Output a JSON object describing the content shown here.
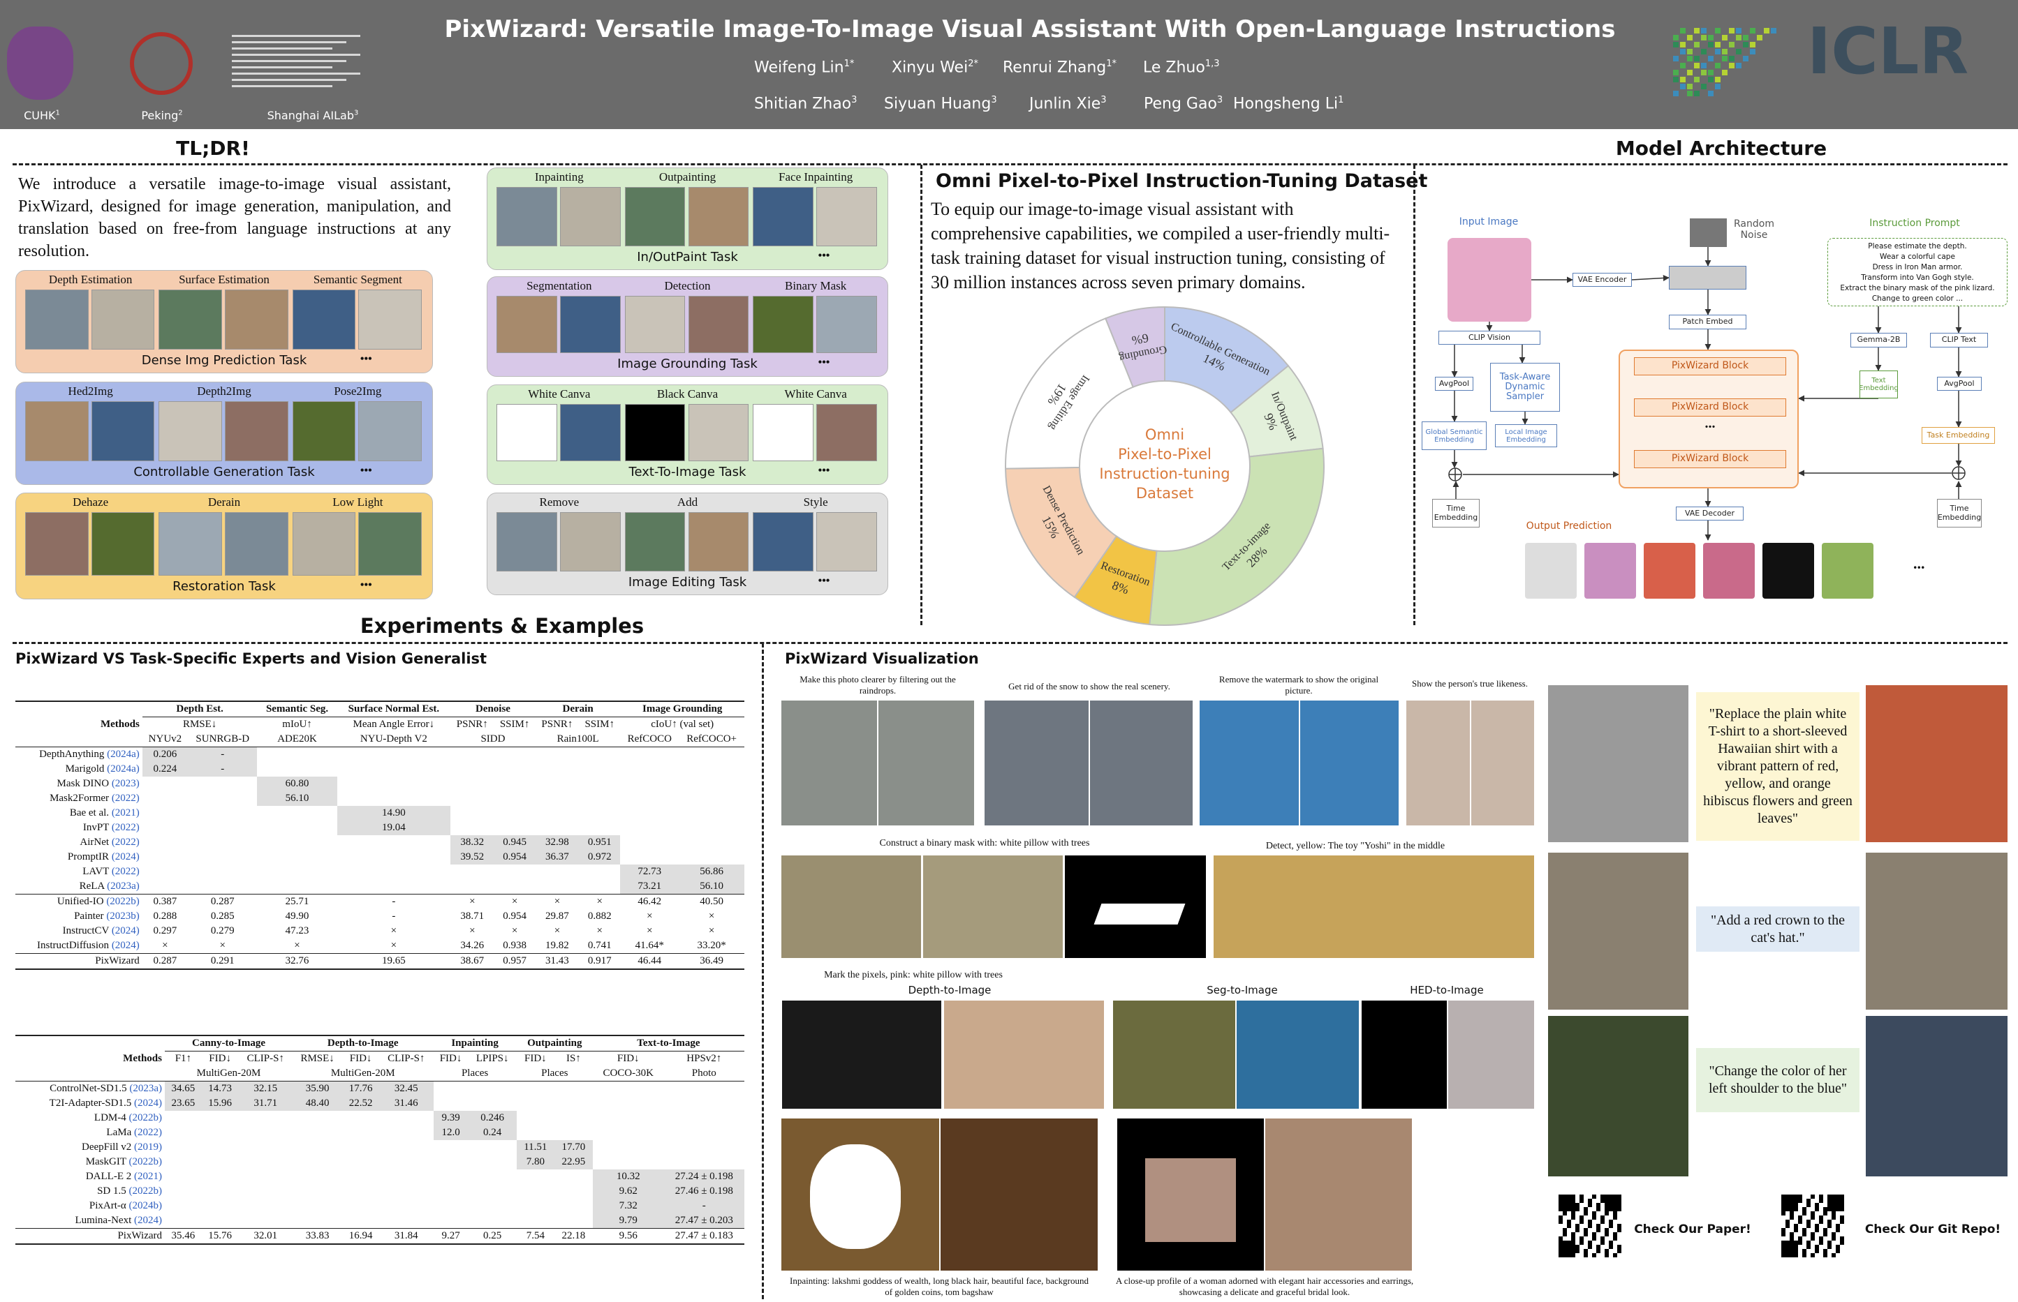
{
  "header": {
    "title": "PixWizard: Versatile Image-To-Image Visual Assistant With Open-Language Instructions",
    "authors": [
      {
        "name": "Weifeng Lin",
        "sup": "1*"
      },
      {
        "name": "Xinyu Wei",
        "sup": "2*"
      },
      {
        "name": "Renrui Zhang",
        "sup": "1*"
      },
      {
        "name": "Le Zhuo",
        "sup": "1,3"
      },
      {
        "name": "Shitian Zhao",
        "sup": "3"
      },
      {
        "name": "Siyuan Huang",
        "sup": "3"
      },
      {
        "name": "Junlin Xie",
        "sup": "3"
      },
      {
        "name": "Peng Gao",
        "sup": "3"
      },
      {
        "name": "Hongsheng Li",
        "sup": "1"
      }
    ],
    "affiliations": [
      {
        "name": "CUHK",
        "sup": "1"
      },
      {
        "name": "Peking",
        "sup": "2"
      },
      {
        "name": "Shanghai AILab",
        "sup": "3"
      }
    ],
    "conference": "ICLR"
  },
  "tldr": {
    "title": "TL;DR!",
    "text": "We introduce a versatile image-to-image visual assistant, PixWizard, designed for image generation, manipulation, and translation based on free-from language instructions at any resolution.",
    "more": "•••",
    "tasks": [
      {
        "title": "Dense Img Prediction Task",
        "items": [
          "Depth Estimation",
          "Surface  Estimation",
          "Semantic Segment"
        ]
      },
      {
        "title": "Controllable Generation Task",
        "items": [
          "Hed2Img",
          "Depth2Img",
          "Pose2Img"
        ]
      },
      {
        "title": "Restoration Task",
        "items": [
          "Dehaze",
          "Derain",
          "Low Light"
        ]
      },
      {
        "title": "In/OutPaint Task",
        "items": [
          "Inpainting",
          "Outpainting",
          "Face Inpainting"
        ]
      },
      {
        "title": "Image Grounding Task",
        "items": [
          "Segmentation",
          "Detection",
          "Binary Mask"
        ]
      },
      {
        "title": "Text-To-Image Task",
        "items": [
          "White Canva",
          "Black Canva",
          "White Canva"
        ]
      },
      {
        "title": "Image Editing Task",
        "items": [
          "Remove",
          "Add",
          "Style"
        ]
      }
    ]
  },
  "dataset": {
    "title": "Omni Pixel-to-Pixel Instruction-Tuning Dataset",
    "text": "To equip our image-to-image visual assistant with comprehensive capabilities, we compiled a user-friendly multi-task training dataset for visual instruction tuning, consisting of 30 million instances across seven primary domains.",
    "center_label": [
      "Omni",
      "Pixel-to-Pixel",
      "Instruction-tuning",
      "Dataset"
    ],
    "segments": [
      {
        "name": "Controllable Generation",
        "value": 14,
        "label": "14%",
        "color": "#bccbee"
      },
      {
        "name": "In/Outpaint",
        "value": 9,
        "label": "9%",
        "color": "#e3f0db"
      },
      {
        "name": "Text-to-image",
        "value": 28,
        "label": "28%",
        "color": "#cbe2b4"
      },
      {
        "name": "Restoration",
        "value": 8,
        "label": "8%",
        "color": "#f2c445"
      },
      {
        "name": "Dense Prediction",
        "value": 15,
        "label": "15%",
        "color": "#f6d0b4"
      },
      {
        "name": "Image Editing",
        "value": 19,
        "label": "19%",
        "color": "#ffffff"
      },
      {
        "name": "Grounding",
        "value": 6,
        "label": "6%",
        "color": "#d6c8e6"
      }
    ]
  },
  "architecture": {
    "title": "Model Architecture",
    "input_image": "Input Image",
    "random_noise": "Random Noise",
    "vae_encoder": "VAE Encoder",
    "clip_vision": "CLIP Vision",
    "patch_embed": "Patch Embed",
    "avgpool": "AvgPool",
    "sampler": "Task-Aware Dynamic Sampler",
    "global_embedding": "Global Semantic Embedding",
    "local_embedding": "Local Image Embedding",
    "time_embedding": "Time Embedding",
    "block": "PixWizard Block",
    "ellipsis": "...",
    "vae_decoder": "VAE Decoder",
    "output_prediction": "Output Prediction",
    "instruction_prompt": "Instruction Prompt",
    "prompts": [
      "Please estimate the depth.",
      "Wear a colorful cape",
      "Dress in Iron Man armor.",
      "Transform into Van Gogh style.",
      "Extract the binary mask of the pink lizard.",
      "Change to green color ..."
    ],
    "gemma": "Gemma-2B",
    "clip_text": "CLIP Text",
    "text_embedding": "Text Embedding",
    "task_embedding": "Task Embedding"
  },
  "experiments": {
    "title": "Experiments & Examples",
    "subtitle": "PixWizard VS Task-Specific Experts and Vision Generalist",
    "table1": {
      "methods_header": "Methods",
      "groups": [
        {
          "name": "Depth Est.",
          "span": 2,
          "metrics": [
            "RMSE↓"
          ],
          "datasets": [
            "NYUv2",
            "SUNRGB-D"
          ]
        },
        {
          "name": "Semantic Seg.",
          "span": 1,
          "metrics": [
            "mIoU↑"
          ],
          "datasets": [
            "ADE20K"
          ]
        },
        {
          "name": "Surface Normal Est.",
          "span": 1,
          "metrics": [
            "Mean Angle Error↓"
          ],
          "datasets": [
            "NYU-Depth V2"
          ]
        },
        {
          "name": "Denoise",
          "span": 2,
          "metrics": [
            "PSNR↑",
            "SSIM↑"
          ],
          "datasets": [
            "SIDD"
          ]
        },
        {
          "name": "Derain",
          "span": 2,
          "metrics": [
            "PSNR↑",
            "SSIM↑"
          ],
          "datasets": [
            "Rain100L"
          ]
        },
        {
          "name": "Image Grounding",
          "span": 2,
          "metrics": [
            "cIoU↑ (val set)"
          ],
          "datasets": [
            "RefCOCO",
            "RefCOCO+"
          ]
        }
      ],
      "rows": [
        {
          "method": "DepthAnything",
          "cite": "(2024a)",
          "cells": [
            "0.206",
            "-",
            null,
            null,
            null,
            null,
            null,
            null,
            null,
            null
          ]
        },
        {
          "method": "Marigold",
          "cite": "(2024a)",
          "cells": [
            "0.224",
            "-",
            null,
            null,
            null,
            null,
            null,
            null,
            null,
            null
          ]
        },
        {
          "method": "Mask DINO",
          "cite": "(2023)",
          "cells": [
            null,
            null,
            "60.80",
            null,
            null,
            null,
            null,
            null,
            null,
            null
          ]
        },
        {
          "method": "Mask2Former",
          "cite": "(2022)",
          "cells": [
            null,
            null,
            "56.10",
            null,
            null,
            null,
            null,
            null,
            null,
            null
          ]
        },
        {
          "method": "Bae et al.",
          "cite": "(2021)",
          "cells": [
            null,
            null,
            null,
            "14.90",
            null,
            null,
            null,
            null,
            null,
            null
          ]
        },
        {
          "method": "InvPT",
          "cite": "(2022)",
          "cells": [
            null,
            null,
            null,
            "19.04",
            null,
            null,
            null,
            null,
            null,
            null
          ]
        },
        {
          "method": "AirNet",
          "cite": "(2022)",
          "cells": [
            null,
            null,
            null,
            null,
            "38.32",
            "0.945",
            "32.98",
            "0.951",
            null,
            null
          ]
        },
        {
          "method": "PromptIR",
          "cite": "(2024)",
          "cells": [
            null,
            null,
            null,
            null,
            "39.52",
            "0.954",
            "36.37",
            "0.972",
            null,
            null
          ]
        },
        {
          "method": "LAVT",
          "cite": "(2022)",
          "cells": [
            null,
            null,
            null,
            null,
            null,
            null,
            null,
            null,
            "72.73",
            "56.86"
          ]
        },
        {
          "method": "ReLA",
          "cite": "(2023a)",
          "cells": [
            null,
            null,
            null,
            null,
            null,
            null,
            null,
            null,
            "73.21",
            "56.10"
          ]
        },
        {
          "method": "Unified-IO",
          "cite": "(2022b)",
          "cells": [
            "0.387",
            "0.287",
            "25.71",
            "-",
            "×",
            "×",
            "×",
            "×",
            "46.42",
            "40.50"
          ]
        },
        {
          "method": "Painter",
          "cite": "(2023b)",
          "cells": [
            "0.288",
            "0.285",
            "49.90",
            "-",
            "38.71",
            "0.954",
            "29.87",
            "0.882",
            "×",
            "×"
          ]
        },
        {
          "method": "InstructCV",
          "cite": "(2024)",
          "cells": [
            "0.297",
            "0.279",
            "47.23",
            "×",
            "×",
            "×",
            "×",
            "×",
            "×",
            "×"
          ]
        },
        {
          "method": "InstructDiffusion",
          "cite": "(2024)",
          "cells": [
            "×",
            "×",
            "×",
            "×",
            "34.26",
            "0.938",
            "19.82",
            "0.741",
            "41.64*",
            "33.20*"
          ]
        },
        {
          "method": "PixWizard",
          "cells": [
            "0.287",
            "0.291",
            "32.76",
            "19.65",
            "38.67",
            "0.957",
            "31.43",
            "0.917",
            "46.44",
            "36.49"
          ]
        }
      ]
    },
    "table2": {
      "methods_header": "Methods",
      "groups": [
        {
          "name": "Canny-to-Image",
          "span": 3,
          "metrics": [
            "F1↑",
            "FID↓",
            "CLIP-S↑"
          ],
          "datasets": [
            "MultiGen-20M"
          ]
        },
        {
          "name": "Depth-to-Image",
          "span": 3,
          "metrics": [
            "RMSE↓",
            "FID↓",
            "CLIP-S↑"
          ],
          "datasets": [
            "MultiGen-20M"
          ]
        },
        {
          "name": "Inpainting",
          "span": 2,
          "metrics": [
            "FID↓",
            "LPIPS↓"
          ],
          "datasets": [
            "Places"
          ]
        },
        {
          "name": "Outpainting",
          "span": 2,
          "metrics": [
            "FID↓",
            "IS↑"
          ],
          "datasets": [
            "Places"
          ]
        },
        {
          "name": "Text-to-Image",
          "span": 2,
          "metrics": [
            "FID↓",
            "HPSv2↑"
          ],
          "datasets": [
            "COCO-30K",
            "Photo"
          ]
        }
      ],
      "rows": [
        {
          "method": "ControlNet-SD1.5",
          "cite": "(2023a)",
          "cells": [
            "34.65",
            "14.73",
            "32.15",
            "35.90",
            "17.76",
            "32.45",
            null,
            null,
            null,
            null,
            null,
            null
          ]
        },
        {
          "method": "T2I-Adapter-SD1.5",
          "cite": "(2024)",
          "cells": [
            "23.65",
            "15.96",
            "31.71",
            "48.40",
            "22.52",
            "31.46",
            null,
            null,
            null,
            null,
            null,
            null
          ]
        },
        {
          "method": "LDM-4",
          "cite": "(2022b)",
          "cells": [
            null,
            null,
            null,
            null,
            null,
            null,
            "9.39",
            "0.246",
            null,
            null,
            null,
            null
          ]
        },
        {
          "method": "LaMa",
          "cite": "(2022)",
          "cells": [
            null,
            null,
            null,
            null,
            null,
            null,
            "12.0",
            "0.24",
            null,
            null,
            null,
            null
          ]
        },
        {
          "method": "DeepFill v2",
          "cite": "(2019)",
          "cells": [
            null,
            null,
            null,
            null,
            null,
            null,
            null,
            null,
            "11.51",
            "17.70",
            null,
            null
          ]
        },
        {
          "method": "MaskGIT",
          "cite": "(2022b)",
          "cells": [
            null,
            null,
            null,
            null,
            null,
            null,
            null,
            null,
            "7.80",
            "22.95",
            null,
            null
          ]
        },
        {
          "method": "DALL-E 2",
          "cite": "(2021)",
          "cells": [
            null,
            null,
            null,
            null,
            null,
            null,
            null,
            null,
            null,
            null,
            "10.32",
            "27.24 ± 0.198"
          ]
        },
        {
          "method": "SD 1.5",
          "cite": "(2022b)",
          "cells": [
            null,
            null,
            null,
            null,
            null,
            null,
            null,
            null,
            null,
            null,
            "9.62",
            "27.46 ± 0.198"
          ]
        },
        {
          "method": "PixArt-α",
          "cite": "(2024b)",
          "cells": [
            null,
            null,
            null,
            null,
            null,
            null,
            null,
            null,
            null,
            null,
            "7.32",
            "-"
          ]
        },
        {
          "method": "Lumina-Next",
          "cite": "(2024)",
          "cells": [
            null,
            null,
            null,
            null,
            null,
            null,
            null,
            null,
            null,
            null,
            "9.79",
            "27.47 ± 0.203"
          ]
        },
        {
          "method": "PixWizard",
          "cells": [
            "35.46",
            "15.76",
            "32.01",
            "33.83",
            "16.94",
            "31.84",
            "9.27",
            "0.25",
            "7.54",
            "22.18",
            "9.56",
            "27.47 ± 0.183"
          ]
        }
      ]
    }
  },
  "visualization": {
    "title": "PixWizard Visualization",
    "captions": {
      "raindrops": "Make this photo clearer by filtering out the raindrops.",
      "snow": "Get rid of the snow to show the real scenery.",
      "watermark": "Remove the watermark to show the original picture.",
      "likeness": "Show the person's true likeness.",
      "binary_mask": "Construct a binary mask with: white pillow with trees",
      "mark_pixels": "Mark the pixels, pink: white pillow with trees",
      "detect": "Detect, yellow: The toy \"Yoshi\" in the middle",
      "depth": "Depth-to-Image",
      "seg": "Seg-to-Image",
      "hed": "HED-to-Image",
      "inpainting": "Inpainting: lakshmi goddess of wealth, long black hair, beautiful face, background of golden coins, tom bagshaw",
      "closeup": "A close-up profile of a woman adorned with elegant hair accessories and earrings, showcasing a delicate and graceful bridal look."
    },
    "edits": [
      "\"Replace the plain white T-shirt to a short-sleeved Hawaiian shirt with a vibrant pattern of red, yellow, and orange hibiscus flowers and green leaves\"",
      "\"Add a red crown to the cat's  hat.\"",
      "\"Change the color of her left shoulder to the blue\""
    ],
    "links": [
      "Check Our Paper!",
      "Check Our Git Repo!"
    ]
  }
}
